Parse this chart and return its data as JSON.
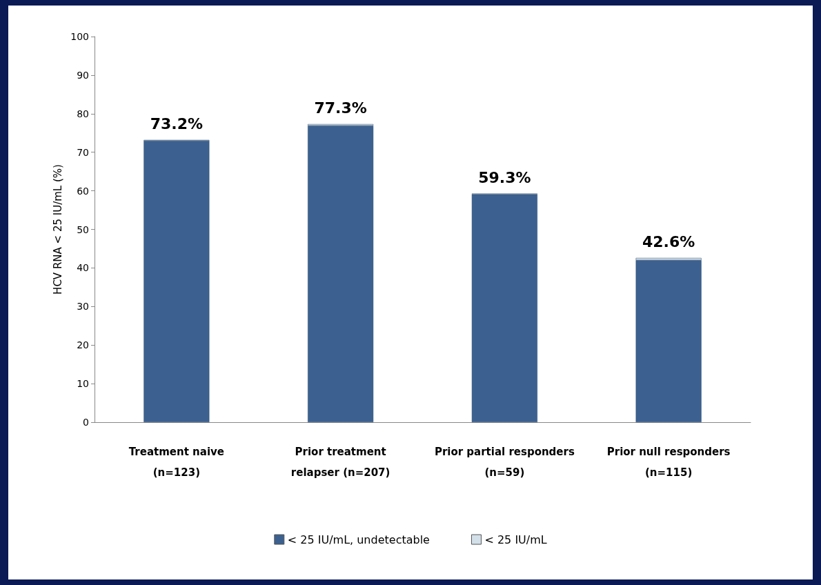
{
  "chart_data": {
    "type": "bar",
    "stacked": true,
    "ylabel": "HCV RNA < 25 IU/mL (%)",
    "categories": [
      "Treatment naive\n(n=123)",
      "Prior treatment\nrelapser (n=207)",
      "Prior partial responders\n(n=59)",
      "Prior null responders\n(n=115)"
    ],
    "series": [
      {
        "name": "< 25 IU/mL, undetectable",
        "color": "#3c6190",
        "values": [
          73.0,
          76.9,
          59.1,
          42.0
        ]
      },
      {
        "name": "< 25 IU/mL",
        "color": "#d3e0ea",
        "values": [
          0.2,
          0.4,
          0.2,
          0.6
        ]
      }
    ],
    "totals": [
      "73.2%",
      "77.3%",
      "59.3%",
      "42.6%"
    ],
    "ylim": [
      0,
      100
    ],
    "yticks": [
      0,
      10,
      20,
      30,
      40,
      50,
      60,
      70,
      80,
      90,
      100
    ],
    "grid": false,
    "legend": "bottom"
  }
}
